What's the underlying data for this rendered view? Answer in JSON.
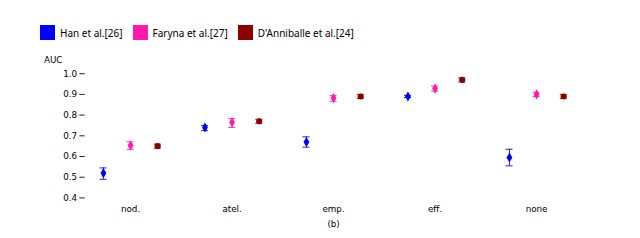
{
  "chart_data": {
    "type": "errorbar",
    "categories": [
      "nod.",
      "atel.",
      "emp.",
      "eff.",
      "none"
    ],
    "xlabel": "(b)",
    "ylabel": "AUC",
    "ylim": [
      0.4,
      1.0
    ],
    "yticks": [
      0.4,
      0.5,
      0.6,
      0.7,
      0.8,
      0.9,
      {
        "value": 1.0,
        "label": "1.0"
      }
    ],
    "grid": false,
    "legend": "top",
    "series": [
      {
        "name": "Han et al.[26]",
        "color": "#0000ff",
        "marker": "diamond",
        "values": [
          0.52,
          0.74,
          0.67,
          0.89,
          0.595
        ],
        "yerr_low": [
          0.03,
          0.015,
          0.025,
          0.005,
          0.04
        ],
        "yerr_high": [
          0.025,
          0.01,
          0.025,
          0.005,
          0.04
        ]
      },
      {
        "name": "Faryna et al.[27]",
        "color": "#ff1aaa",
        "marker": "diamond",
        "values": [
          0.653,
          0.765,
          0.882,
          0.928,
          0.9
        ],
        "yerr_low": [
          0.018,
          0.025,
          0.015,
          0.012,
          0.01
        ],
        "yerr_high": [
          0.018,
          0.018,
          0.012,
          0.012,
          0.01
        ]
      },
      {
        "name": "D'Anniballe et al.[24]",
        "color": "#8b0000",
        "marker": "circle",
        "values": [
          0.65,
          0.77,
          0.89,
          0.97,
          0.89
        ],
        "yerr_low": [
          0.01,
          0.01,
          0.01,
          0.01,
          0.01
        ],
        "yerr_high": [
          0.01,
          0.01,
          0.01,
          0.01,
          0.01
        ]
      }
    ]
  }
}
